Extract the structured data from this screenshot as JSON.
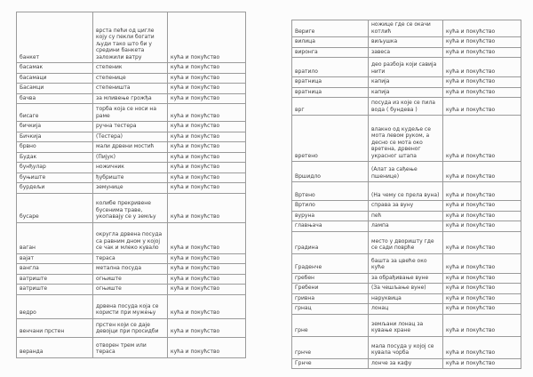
{
  "category_label": "кућа и покућство",
  "tables": [
    {
      "name": "left-glossary-table",
      "rows": [
        {
          "term": "банкет",
          "definition": "врста пећи од цигле коју су пекли богати људи тако што би у средини банкета заложили ватру",
          "category": "кућа и покућство"
        },
        {
          "term": "басамак",
          "definition": "степеник",
          "category": "кућа и покућство"
        },
        {
          "term": "басамаци",
          "definition": "степенице",
          "category": "кућа и покућство"
        },
        {
          "term": "Басамци",
          "definition": "степеништа",
          "category": "кућа и покућство"
        },
        {
          "term": "бачва",
          "definition": "за мливење грожђа",
          "category": "кућа и покућство"
        },
        {
          "term": "бисаге",
          "definition": "торба која се носи на раме",
          "category": "кућа и покућство"
        },
        {
          "term": "бичкија",
          "definition": "ручна тестера",
          "category": "кућа и покућство"
        },
        {
          "term": "Бичкија",
          "definition": "(Тестера)",
          "category": "кућа и покућство"
        },
        {
          "term": "брвно",
          "definition": "мали дрвени мостић",
          "category": "кућа и покућство"
        },
        {
          "term": "Будак",
          "definition": "(Пијук)",
          "category": "кућа и покућство"
        },
        {
          "term": "бунђулар",
          "definition": "ножичник",
          "category": "кућа и покућство"
        },
        {
          "term": "буњиште",
          "definition": "ђубриште",
          "category": "кућа и покућство"
        },
        {
          "term": "бурдељи",
          "definition": "земунице",
          "category": "кућа и покућство"
        },
        {
          "term": "бусаре",
          "definition": "колибе прекривене бусенима траве, укопавају се у земљу",
          "category": "кућа и покућство"
        },
        {
          "term": "ваган",
          "definition": "округла дрвена посуда са равним дном у којој се чак и млеко кувало",
          "category": "кућа и покућство"
        },
        {
          "term": "вајат",
          "definition": "тераса",
          "category": "кућа и покућство"
        },
        {
          "term": "вангла",
          "definition": "метална посуда",
          "category": "кућа и покућство"
        },
        {
          "term": "ватриште",
          "definition": "огњиште",
          "category": "кућа и покућство"
        },
        {
          "term": "ватриште",
          "definition": "огњиште",
          "category": "кућа и покућство"
        },
        {
          "term": "ведро",
          "definition": "дрвена посуда која се користи при мужењу",
          "category": "кућа и покућство"
        },
        {
          "term": "венчани прстен",
          "definition": "прстен који се даје девојци при просидби",
          "category": "кућа и покућство"
        },
        {
          "term": "веранда",
          "definition": "отворен трем или тераса",
          "category": "кућа и покућство"
        }
      ]
    },
    {
      "name": "right-glossary-table",
      "rows": [
        {
          "term": "Вериге",
          "definition": "ножице где се окачи котлић",
          "category": "кућа и покућство"
        },
        {
          "term": "вилица",
          "definition": "виљушка",
          "category": "кућа и покућство"
        },
        {
          "term": "виронга",
          "definition": "завеса",
          "category": "кућа и покућство"
        },
        {
          "term": "вратило",
          "definition": "део разбоја који савија нити",
          "category": "кућа и покућство"
        },
        {
          "term": "вратница",
          "definition": "капија",
          "category": "кућа и покућство"
        },
        {
          "term": "вратница",
          "definition": "капија",
          "category": "кућа и покућство"
        },
        {
          "term": "врг",
          "definition": "посуда из које се пила вода ( бундева )",
          "category": "кућа и покућство"
        },
        {
          "term": "вретено",
          "definition": "влакно од кудеље се мота левом руком, а десно се мота око вретена, дрвеног украсног штапа",
          "category": "кућа и покућство"
        },
        {
          "term": "Вршидло",
          "definition": "(Алат за сађење пшенице)",
          "category": "кућа и покућство"
        },
        {
          "term": "Вртено",
          "definition": "(На чему се прела вуна)",
          "category": "кућа и покућство"
        },
        {
          "term": "Вртило",
          "definition": "справа за вуну",
          "category": "кућа и покућство"
        },
        {
          "term": "вуруна",
          "definition": "пећ",
          "category": "кућа и покућство"
        },
        {
          "term": "главњача",
          "definition": "лампа",
          "category": "кућа и покућство"
        },
        {
          "term": "градина",
          "definition": "место у дворишту где се сади поврће",
          "category": "кућа и покућство"
        },
        {
          "term": "Граденче",
          "definition": "башта за цвеће око куће",
          "category": "кућа и покућство"
        },
        {
          "term": "гребен",
          "definition": "за обрађивање вуне",
          "category": "кућа и покућство"
        },
        {
          "term": "Гребени",
          "definition": "(За чешљање вуне)",
          "category": "кућа и покућство"
        },
        {
          "term": "гривна",
          "definition": "наруквица",
          "category": "кућа и покућство"
        },
        {
          "term": "грнац",
          "definition": "лонац",
          "category": "кућа и покућство"
        },
        {
          "term": "грне",
          "definition": "земљани лонац за кување хране",
          "category": "кућа и покућство"
        },
        {
          "term": "грнче",
          "definition": "мала посуда у којој се кувала чорба",
          "category": "кућа и покућство"
        },
        {
          "term": "Грнче",
          "definition": "лонче за кафу",
          "category": "кућа и покућство"
        }
      ]
    }
  ]
}
